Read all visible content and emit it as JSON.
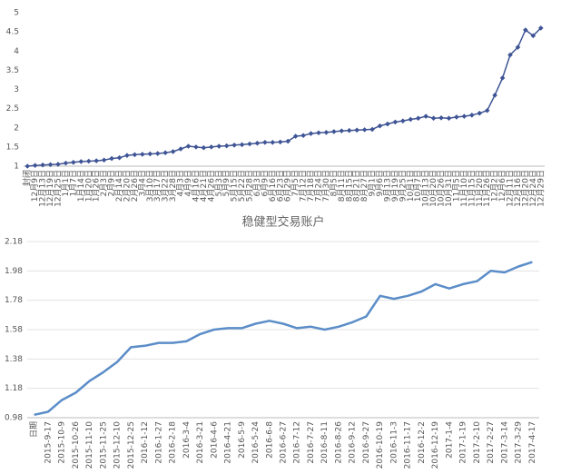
{
  "chart_data": [
    {
      "type": "line",
      "marker": "diamond",
      "color": "#3e5495",
      "grid": false,
      "categories": [
        "封闭",
        "12月9日",
        "12月13日",
        "12月19日",
        "12月25日",
        "1月1日",
        "1月7日",
        "1月14日",
        "1月20日",
        "1月26日",
        "2月3日",
        "2月9日",
        "2月14日",
        "2月20日",
        "2月26日",
        "3月4日",
        "3月10日",
        "3月17日",
        "3月22日",
        "3月28日",
        "4月3日",
        "4月9日",
        "4月16日",
        "4月21日",
        "4月26日",
        "5月3日",
        "5月9日",
        "5月15日",
        "5月22日",
        "5月28日",
        "6月3日",
        "6月9日",
        "6月16日",
        "6月23日",
        "6月29日",
        "7月5日",
        "7月12日",
        "7月18日",
        "7月24日",
        "7月30日",
        "8月5日",
        "8月11日",
        "8月15日",
        "8月21日",
        "8月27日",
        "9月1日",
        "9月6日",
        "9月13日",
        "9月19日",
        "9月25日",
        "10月1日",
        "10月7日",
        "10月13日",
        "10月20日",
        "10月26日",
        "10月31日",
        "11月5日",
        "11月10日",
        "11月15日",
        "11月20日",
        "11月26日",
        "12月2日",
        "12月6日",
        "12月11日",
        "12月16日",
        "12月20日",
        "12月24日",
        "12月29日"
      ],
      "values": [
        1.0,
        1.02,
        1.03,
        1.04,
        1.05,
        1.08,
        1.1,
        1.12,
        1.13,
        1.14,
        1.16,
        1.2,
        1.22,
        1.28,
        1.3,
        1.31,
        1.32,
        1.33,
        1.35,
        1.38,
        1.45,
        1.52,
        1.5,
        1.48,
        1.5,
        1.52,
        1.53,
        1.55,
        1.56,
        1.58,
        1.6,
        1.62,
        1.62,
        1.63,
        1.65,
        1.78,
        1.8,
        1.85,
        1.87,
        1.88,
        1.9,
        1.92,
        1.93,
        1.94,
        1.95,
        1.96,
        2.05,
        2.1,
        2.15,
        2.18,
        2.22,
        2.25,
        2.3,
        2.25,
        2.26,
        2.25,
        2.28,
        2.3,
        2.33,
        2.38,
        2.45,
        2.85,
        3.3,
        3.9,
        4.1,
        4.55,
        4.4,
        4.6
      ],
      "ylim": [
        1,
        5
      ],
      "yticks": [
        1,
        1.5,
        2,
        2.5,
        3,
        3.5,
        4,
        4.5,
        5
      ]
    },
    {
      "type": "line",
      "title": "稳健型交易账户",
      "color": "#5b8dc8",
      "grid": true,
      "categories": [
        "日期",
        "2015-9-17",
        "2015-10-9",
        "2015-10-26",
        "2015-11-10",
        "2015-11-25",
        "2015-12-10",
        "2015-12-25",
        "2016-1-12",
        "2016-1-27",
        "2016-2-18",
        "2016-3-4",
        "2016-3-21",
        "2016-4-6",
        "2016-4-21",
        "2016-5-9",
        "2016-5-24",
        "2016-6-8",
        "2016-6-27",
        "2016-7-12",
        "2016-7-27",
        "2016-8-11",
        "2016-8-26",
        "2016-9-12",
        "2016-9-27",
        "2016-10-19",
        "2016-11-3",
        "2016-11-17",
        "2016-12-2",
        "2016-12-19",
        "2017-1-4",
        "2017-1-19",
        "2017-2-10",
        "2017-2-27",
        "2017-3-14",
        "2017-3-29",
        "2017-4-17"
      ],
      "values": [
        1.0,
        1.02,
        1.1,
        1.15,
        1.23,
        1.29,
        1.36,
        1.46,
        1.47,
        1.49,
        1.49,
        1.5,
        1.55,
        1.58,
        1.59,
        1.59,
        1.62,
        1.64,
        1.62,
        1.59,
        1.6,
        1.58,
        1.6,
        1.63,
        1.67,
        1.81,
        1.79,
        1.81,
        1.84,
        1.89,
        1.86,
        1.89,
        1.91,
        1.98,
        1.97,
        2.01,
        2.04
      ],
      "ylim": [
        0.98,
        2.18
      ],
      "yticks": [
        0.98,
        1.18,
        1.38,
        1.58,
        1.78,
        1.98,
        2.18
      ]
    }
  ]
}
